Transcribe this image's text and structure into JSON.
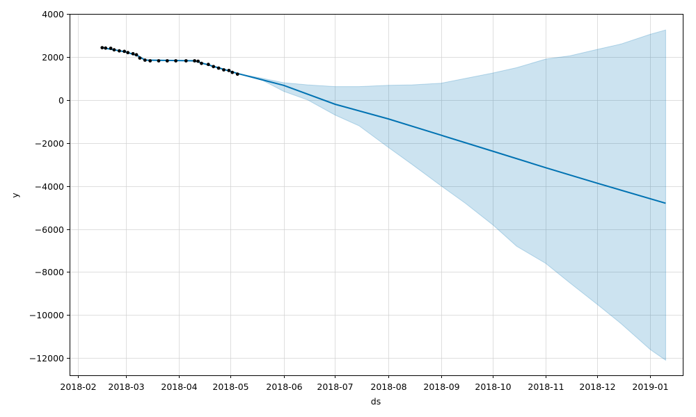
{
  "chart_data": {
    "type": "line",
    "xlabel": "ds",
    "ylabel": "y",
    "x_ticks": [
      "2018-02",
      "2018-03",
      "2018-04",
      "2018-05",
      "2018-06",
      "2018-07",
      "2018-08",
      "2018-09",
      "2018-10",
      "2018-11",
      "2018-12",
      "2019-01"
    ],
    "y_ticks": [
      4000,
      2000,
      0,
      -2000,
      -4000,
      -6000,
      -8000,
      -10000,
      -12000
    ],
    "xlim": [
      "2018-01-27",
      "2019-01-20"
    ],
    "ylim": [
      -12800,
      4000
    ],
    "grid": true,
    "colors": {
      "forecast": "#0072B2",
      "band": "#0072B2",
      "observed": "#000000"
    },
    "series": [
      {
        "kind": "observed",
        "points": [
          [
            "2018-02-15",
            2430
          ],
          [
            "2018-02-17",
            2410
          ],
          [
            "2018-02-20",
            2400
          ],
          [
            "2018-02-22",
            2330
          ],
          [
            "2018-02-25",
            2280
          ],
          [
            "2018-02-28",
            2260
          ],
          [
            "2018-03-02",
            2200
          ],
          [
            "2018-03-05",
            2150
          ],
          [
            "2018-03-07",
            2100
          ],
          [
            "2018-03-09",
            1950
          ],
          [
            "2018-03-12",
            1850
          ],
          [
            "2018-03-15",
            1820
          ],
          [
            "2018-03-20",
            1820
          ],
          [
            "2018-03-25",
            1820
          ],
          [
            "2018-03-30",
            1820
          ],
          [
            "2018-04-05",
            1820
          ],
          [
            "2018-04-10",
            1820
          ],
          [
            "2018-04-12",
            1800
          ],
          [
            "2018-04-14",
            1700
          ],
          [
            "2018-04-18",
            1650
          ],
          [
            "2018-04-21",
            1550
          ],
          [
            "2018-04-24",
            1480
          ],
          [
            "2018-04-27",
            1400
          ],
          [
            "2018-04-30",
            1370
          ],
          [
            "2018-05-02",
            1280
          ],
          [
            "2018-05-05",
            1200
          ]
        ]
      },
      {
        "kind": "forecast",
        "points": [
          [
            "2018-02-15",
            2430
          ],
          [
            "2018-02-22",
            2330
          ],
          [
            "2018-03-01",
            2230
          ],
          [
            "2018-03-08",
            2050
          ],
          [
            "2018-03-12",
            1850
          ],
          [
            "2018-04-10",
            1820
          ],
          [
            "2018-04-14",
            1720
          ],
          [
            "2018-04-21",
            1560
          ],
          [
            "2018-04-28",
            1400
          ],
          [
            "2018-05-05",
            1230
          ],
          [
            "2018-06-01",
            680
          ],
          [
            "2018-07-01",
            -200
          ],
          [
            "2018-08-01",
            -880
          ],
          [
            "2018-09-01",
            -1640
          ],
          [
            "2018-10-01",
            -2380
          ],
          [
            "2018-11-01",
            -3150
          ],
          [
            "2018-12-01",
            -3870
          ],
          [
            "2019-01-10",
            -4800
          ]
        ]
      },
      {
        "kind": "interval",
        "upper": [
          [
            "2018-05-05",
            1230
          ],
          [
            "2018-05-20",
            1000
          ],
          [
            "2018-06-01",
            800
          ],
          [
            "2018-06-15",
            700
          ],
          [
            "2018-07-01",
            620
          ],
          [
            "2018-07-15",
            620
          ],
          [
            "2018-08-01",
            680
          ],
          [
            "2018-08-15",
            700
          ],
          [
            "2018-09-01",
            780
          ],
          [
            "2018-09-15",
            1000
          ],
          [
            "2018-10-01",
            1250
          ],
          [
            "2018-10-15",
            1500
          ],
          [
            "2018-11-01",
            1900
          ],
          [
            "2018-11-15",
            2050
          ],
          [
            "2018-12-01",
            2350
          ],
          [
            "2018-12-15",
            2600
          ],
          [
            "2019-01-01",
            3050
          ],
          [
            "2019-01-10",
            3250
          ]
        ],
        "lower": [
          [
            "2018-05-05",
            1230
          ],
          [
            "2018-05-20",
            900
          ],
          [
            "2018-06-01",
            400
          ],
          [
            "2018-06-15",
            0
          ],
          [
            "2018-07-01",
            -700
          ],
          [
            "2018-07-15",
            -1200
          ],
          [
            "2018-08-01",
            -2200
          ],
          [
            "2018-08-15",
            -3000
          ],
          [
            "2018-09-01",
            -4000
          ],
          [
            "2018-09-15",
            -4800
          ],
          [
            "2018-10-01",
            -5800
          ],
          [
            "2018-10-15",
            -6800
          ],
          [
            "2018-11-01",
            -7600
          ],
          [
            "2018-11-15",
            -8500
          ],
          [
            "2018-12-01",
            -9500
          ],
          [
            "2018-12-15",
            -10400
          ],
          [
            "2019-01-01",
            -11600
          ],
          [
            "2019-01-10",
            -12100
          ]
        ]
      }
    ]
  }
}
